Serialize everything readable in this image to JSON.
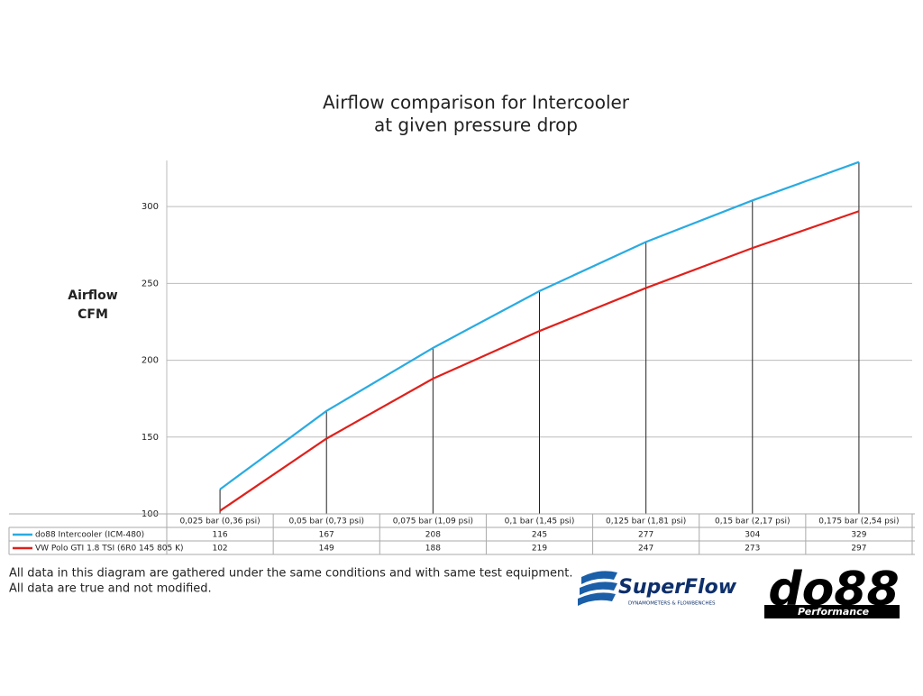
{
  "chart_data": {
    "type": "line",
    "title": [
      "Airflow comparison for Intercooler",
      "at given pressure drop"
    ],
    "y_label": [
      "Airflow",
      "CFM"
    ],
    "categories": [
      "0,025 bar (0,36 psi)",
      "0,05 bar (0,73 psi)",
      "0,075 bar (1,09 psi)",
      "0,1 bar (1,45 psi)",
      "0,125 bar (1,81 psi)",
      "0,15 bar (2,17 psi)",
      "0,175 bar (2,54 psi)"
    ],
    "series": [
      {
        "name": "do88 Intercooler (ICM-480)",
        "color": "#29abe2",
        "values": [
          116,
          167,
          208,
          245,
          277,
          304,
          329
        ]
      },
      {
        "name": "VW Polo GTI 1.8 TSI (6R0 145 805 K)",
        "color": "#e0201b",
        "values": [
          102,
          149,
          188,
          219,
          247,
          273,
          297
        ]
      }
    ],
    "ylim": [
      100,
      330
    ],
    "yticks": [
      100,
      150,
      200,
      250,
      300
    ],
    "grid": true
  },
  "footnote": [
    "All data in this diagram are gathered under the same conditions and with same test equipment.",
    "All data are true and not modified."
  ],
  "logos": {
    "superflow": "SuperFlow",
    "superflow_tagline": "DYNAMOMETERS & FLOWBENCHES",
    "do88": "do88",
    "do88_tagline": "Performance"
  }
}
